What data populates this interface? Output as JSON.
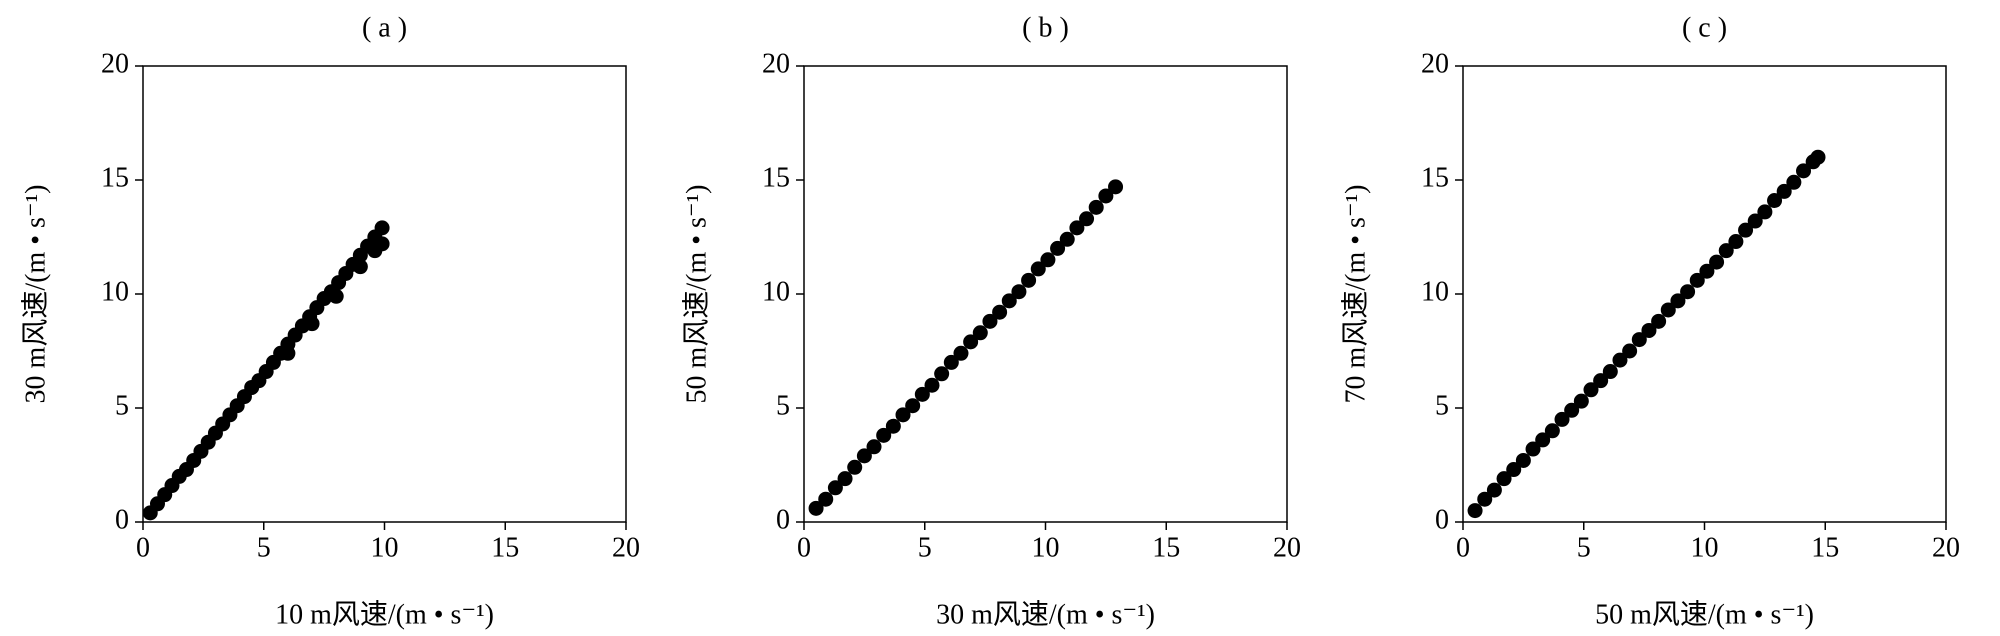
{
  "chart_data": [
    {
      "type": "scatter",
      "title": "( a )",
      "x_label": "10 m风速/(m • s⁻¹)",
      "y_label": "30 m风速/(m • s⁻¹)",
      "color": "#000000",
      "xlim": [
        0,
        20
      ],
      "ylim": [
        0,
        20
      ],
      "xticks": [
        0,
        5,
        10,
        15,
        20
      ],
      "yticks": [
        0,
        5,
        10,
        15,
        20
      ],
      "x": [
        0.3,
        0.6,
        0.9,
        1.2,
        1.5,
        1.8,
        2.1,
        2.4,
        2.7,
        3.0,
        3.3,
        3.6,
        3.9,
        4.2,
        4.5,
        4.8,
        5.1,
        5.4,
        5.7,
        6.0,
        6.3,
        6.6,
        6.9,
        7.2,
        7.5,
        7.8,
        8.1,
        8.4,
        8.7,
        9.0,
        9.3,
        9.6,
        9.9,
        6.0,
        7.0,
        8.0,
        9.0,
        9.6,
        9.9
      ],
      "values": [
        0.4,
        0.8,
        1.2,
        1.6,
        2.0,
        2.3,
        2.7,
        3.1,
        3.5,
        3.9,
        4.3,
        4.7,
        5.1,
        5.5,
        5.9,
        6.2,
        6.6,
        7.0,
        7.4,
        7.8,
        8.2,
        8.6,
        9.0,
        9.4,
        9.8,
        10.1,
        10.5,
        10.9,
        11.3,
        11.7,
        12.1,
        12.5,
        12.9,
        7.4,
        8.7,
        9.9,
        11.2,
        11.9,
        12.2
      ]
    },
    {
      "type": "scatter",
      "title": "( b )",
      "x_label": "30 m风速/(m • s⁻¹)",
      "y_label": "50 m风速/(m • s⁻¹)",
      "color": "#000000",
      "xlim": [
        0,
        20
      ],
      "ylim": [
        0,
        20
      ],
      "xticks": [
        0,
        5,
        10,
        15,
        20
      ],
      "yticks": [
        0,
        5,
        10,
        15,
        20
      ],
      "x": [
        0.5,
        0.9,
        1.3,
        1.7,
        2.1,
        2.5,
        2.9,
        3.3,
        3.7,
        4.1,
        4.5,
        4.9,
        5.3,
        5.7,
        6.1,
        6.5,
        6.9,
        7.3,
        7.7,
        8.1,
        8.5,
        8.9,
        9.3,
        9.7,
        10.1,
        10.5,
        10.9,
        11.3,
        11.7,
        12.1,
        12.5,
        12.9
      ],
      "values": [
        0.6,
        1.0,
        1.5,
        1.9,
        2.4,
        2.9,
        3.3,
        3.8,
        4.2,
        4.7,
        5.1,
        5.6,
        6.0,
        6.5,
        7.0,
        7.4,
        7.9,
        8.3,
        8.8,
        9.2,
        9.7,
        10.1,
        10.6,
        11.1,
        11.5,
        12.0,
        12.4,
        12.9,
        13.3,
        13.8,
        14.3,
        14.7
      ]
    },
    {
      "type": "scatter",
      "title": "( c )",
      "x_label": "50 m风速/(m • s⁻¹)",
      "y_label": "70 m风速/(m • s⁻¹)",
      "color": "#000000",
      "xlim": [
        0,
        20
      ],
      "ylim": [
        0,
        20
      ],
      "xticks": [
        0,
        5,
        10,
        15,
        20
      ],
      "yticks": [
        0,
        5,
        10,
        15,
        20
      ],
      "x": [
        0.5,
        0.9,
        1.3,
        1.7,
        2.1,
        2.5,
        2.9,
        3.3,
        3.7,
        4.1,
        4.5,
        4.9,
        5.3,
        5.7,
        6.1,
        6.5,
        6.9,
        7.3,
        7.7,
        8.1,
        8.5,
        8.9,
        9.3,
        9.7,
        10.1,
        10.5,
        10.9,
        11.3,
        11.7,
        12.1,
        12.5,
        12.9,
        13.3,
        13.7,
        14.1,
        14.5,
        14.7
      ],
      "values": [
        0.5,
        1.0,
        1.4,
        1.9,
        2.3,
        2.7,
        3.2,
        3.6,
        4.0,
        4.5,
        4.9,
        5.3,
        5.8,
        6.2,
        6.6,
        7.1,
        7.5,
        8.0,
        8.4,
        8.8,
        9.3,
        9.7,
        10.1,
        10.6,
        11.0,
        11.4,
        11.9,
        12.3,
        12.8,
        13.2,
        13.6,
        14.1,
        14.5,
        14.9,
        15.4,
        15.8,
        16.0
      ]
    }
  ]
}
